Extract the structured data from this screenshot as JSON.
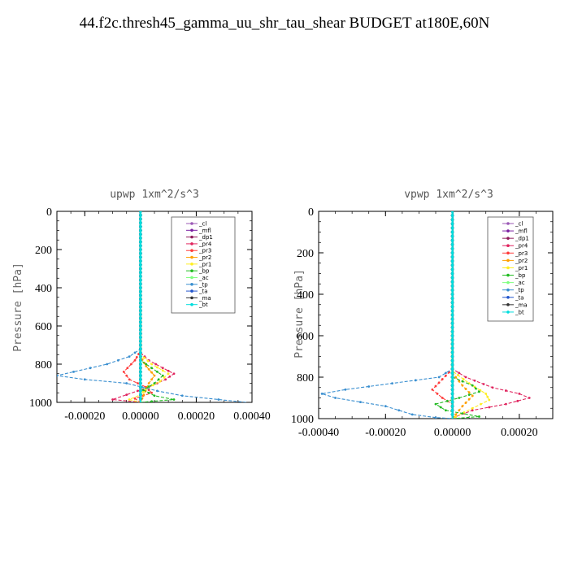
{
  "title": "44.f2c.thresh45_gamma_uu_shr_tau_shear  BUDGET at180E,60N",
  "chart_data": [
    {
      "type": "line",
      "title": "upwp   1xm^2/s^3",
      "ylabel": "Pressure [hPa]",
      "xlabel": "",
      "xlim": [
        -0.0003,
        0.0004
      ],
      "ylim": [
        1000,
        0
      ],
      "xticks": [
        -0.0002,
        0,
        0.0002,
        0.0004
      ],
      "xtick_labels": [
        "-0.00020",
        "0.00000",
        "0.00020",
        "0.00040"
      ],
      "yticks": [
        0,
        200,
        400,
        600,
        800,
        1000
      ],
      "ytick_labels": [
        "0",
        "200",
        "400",
        "600",
        "800",
        "1000"
      ],
      "legend_position": "top-right",
      "series": [
        {
          "name": "_cl",
          "color": "#9b59b6",
          "points": [
            [
              0,
              0
            ],
            [
              0,
              1000
            ]
          ]
        },
        {
          "name": "_mfl",
          "color": "#7b1fa2",
          "points": [
            [
              0,
              0
            ],
            [
              0,
              1000
            ]
          ]
        },
        {
          "name": "_dp1",
          "color": "#8e1a5a",
          "points": [
            [
              0,
              0
            ],
            [
              0,
              1000
            ]
          ]
        },
        {
          "name": "_pr4",
          "color": "#e0245e",
          "points": [
            [
              0,
              0
            ],
            [
              0,
              740
            ],
            [
              3e-05,
              780
            ],
            [
              8e-05,
              820
            ],
            [
              0.00012,
              850
            ],
            [
              9e-05,
              880
            ],
            [
              3e-05,
              920
            ],
            [
              -5e-05,
              960
            ],
            [
              -0.0001,
              985
            ],
            [
              0,
              1000
            ]
          ]
        },
        {
          "name": "_pr3",
          "color": "#ff3b3b",
          "points": [
            [
              0,
              0
            ],
            [
              0,
              730
            ],
            [
              -2e-05,
              780
            ],
            [
              -6e-05,
              840
            ],
            [
              -4e-05,
              880
            ],
            [
              2e-05,
              920
            ],
            [
              4e-05,
              950
            ],
            [
              -2e-05,
              980
            ],
            [
              0,
              1000
            ]
          ]
        },
        {
          "name": "_pr2",
          "color": "#ffa000",
          "points": [
            [
              0,
              0
            ],
            [
              0,
              760
            ],
            [
              2e-05,
              810
            ],
            [
              5e-05,
              860
            ],
            [
              3e-05,
              900
            ],
            [
              0,
              1000
            ]
          ]
        },
        {
          "name": "_pr1",
          "color": "#ffee22",
          "points": [
            [
              0,
              0
            ],
            [
              0,
              750
            ],
            [
              4e-05,
              800
            ],
            [
              0.0001,
              850
            ],
            [
              7e-05,
              890
            ],
            [
              2e-05,
              930
            ],
            [
              0,
              960
            ],
            [
              -4e-05,
              985
            ],
            [
              0,
              1000
            ]
          ]
        },
        {
          "name": "_bp",
          "color": "#22bb22",
          "points": [
            [
              0,
              0
            ],
            [
              0,
              780
            ],
            [
              4e-05,
              820
            ],
            [
              8e-05,
              860
            ],
            [
              5e-05,
              900
            ],
            [
              1e-05,
              935
            ],
            [
              5e-05,
              965
            ],
            [
              0.00012,
              985
            ],
            [
              4e-05,
              995
            ],
            [
              0,
              1000
            ]
          ]
        },
        {
          "name": "_ac",
          "color": "#7fff7f",
          "points": [
            [
              0,
              0
            ],
            [
              0,
              1000
            ]
          ]
        },
        {
          "name": "_tp",
          "color": "#3a8fd0",
          "points": [
            [
              0,
              0
            ],
            [
              0,
              720
            ],
            [
              -4e-05,
              760
            ],
            [
              -0.00012,
              800
            ],
            [
              -0.00024,
              840
            ],
            [
              -0.0003,
              860
            ],
            [
              -0.0002,
              880
            ],
            [
              -5e-05,
              900
            ],
            [
              6e-05,
              940
            ],
            [
              0.00015,
              965
            ],
            [
              0.00028,
              985
            ],
            [
              0.00038,
              1000
            ]
          ]
        },
        {
          "name": "_ta",
          "color": "#2255cc",
          "points": [
            [
              0,
              0
            ],
            [
              0,
              1000
            ]
          ]
        },
        {
          "name": "_ma",
          "color": "#333333",
          "points": [
            [
              0,
              0
            ],
            [
              0,
              1000
            ]
          ]
        },
        {
          "name": "_bt",
          "color": "#00dddd",
          "points": [
            [
              0,
              0
            ],
            [
              0,
              1000
            ]
          ]
        }
      ]
    },
    {
      "type": "line",
      "title": "vpwp   1xm^2/s^3",
      "ylabel": "Pressure [hPa]",
      "xlabel": "",
      "xlim": [
        -0.0004,
        0.0003
      ],
      "ylim": [
        1000,
        0
      ],
      "xticks": [
        -0.0004,
        -0.0002,
        0,
        0.0002
      ],
      "xtick_labels": [
        "-0.00040",
        "-0.00020",
        "0.00000",
        "0.00020"
      ],
      "yticks": [
        0,
        200,
        400,
        600,
        800,
        1000
      ],
      "ytick_labels": [
        "0",
        "200",
        "400",
        "600",
        "800",
        "1000"
      ],
      "legend_position": "top-right",
      "series": [
        {
          "name": "_cl",
          "color": "#9b59b6",
          "points": [
            [
              0,
              0
            ],
            [
              0,
              1000
            ]
          ]
        },
        {
          "name": "_mfl",
          "color": "#7b1fa2",
          "points": [
            [
              0,
              0
            ],
            [
              0,
              1000
            ]
          ]
        },
        {
          "name": "_dp1",
          "color": "#8e1a5a",
          "points": [
            [
              0,
              0
            ],
            [
              0,
              1000
            ]
          ]
        },
        {
          "name": "_pr4",
          "color": "#e0245e",
          "points": [
            [
              0,
              0
            ],
            [
              0,
              760
            ],
            [
              4e-05,
              800
            ],
            [
              0.00012,
              850
            ],
            [
              0.0002,
              880
            ],
            [
              0.00023,
              900
            ],
            [
              0.00016,
              930
            ],
            [
              6e-05,
              960
            ],
            [
              1e-05,
              990
            ],
            [
              0,
              1000
            ]
          ]
        },
        {
          "name": "_pr3",
          "color": "#ff3b3b",
          "points": [
            [
              0,
              0
            ],
            [
              0,
              760
            ],
            [
              -3e-05,
              810
            ],
            [
              -6e-05,
              860
            ],
            [
              -3e-05,
              900
            ],
            [
              0,
              930
            ],
            [
              0,
              1000
            ]
          ]
        },
        {
          "name": "_pr2",
          "color": "#ffa000",
          "points": [
            [
              0,
              0
            ],
            [
              0,
              780
            ],
            [
              3e-05,
              840
            ],
            [
              6e-05,
              890
            ],
            [
              3e-05,
              940
            ],
            [
              0,
              1000
            ]
          ]
        },
        {
          "name": "_pr1",
          "color": "#ffee22",
          "points": [
            [
              0,
              0
            ],
            [
              0,
              770
            ],
            [
              5e-05,
              830
            ],
            [
              0.0001,
              880
            ],
            [
              0.00011,
              910
            ],
            [
              6e-05,
              950
            ],
            [
              1e-05,
              990
            ],
            [
              0,
              1000
            ]
          ]
        },
        {
          "name": "_bp",
          "color": "#22bb22",
          "points": [
            [
              0,
              0
            ],
            [
              0,
              800
            ],
            [
              6e-05,
              840
            ],
            [
              8e-05,
              870
            ],
            [
              2e-05,
              900
            ],
            [
              -5e-05,
              930
            ],
            [
              -2e-05,
              960
            ],
            [
              8e-05,
              990
            ],
            [
              0,
              1000
            ]
          ]
        },
        {
          "name": "_ac",
          "color": "#7fff7f",
          "points": [
            [
              0,
              0
            ],
            [
              0,
              1000
            ]
          ]
        },
        {
          "name": "_tp",
          "color": "#3a8fd0",
          "points": [
            [
              0,
              0
            ],
            [
              0,
              760
            ],
            [
              -4e-05,
              800
            ],
            [
              -0.00018,
              830
            ],
            [
              -0.00032,
              860
            ],
            [
              -0.00039,
              880
            ],
            [
              -0.00035,
              900
            ],
            [
              -0.0002,
              940
            ],
            [
              -0.00012,
              980
            ],
            [
              -5e-05,
              995
            ],
            [
              0,
              1000
            ]
          ]
        },
        {
          "name": "_ta",
          "color": "#2255cc",
          "points": [
            [
              0,
              0
            ],
            [
              0,
              1000
            ]
          ]
        },
        {
          "name": "_ma",
          "color": "#333333",
          "points": [
            [
              0,
              0
            ],
            [
              0,
              1000
            ]
          ]
        },
        {
          "name": "_bt",
          "color": "#00dddd",
          "points": [
            [
              0,
              0
            ],
            [
              0,
              1000
            ]
          ]
        }
      ]
    }
  ]
}
